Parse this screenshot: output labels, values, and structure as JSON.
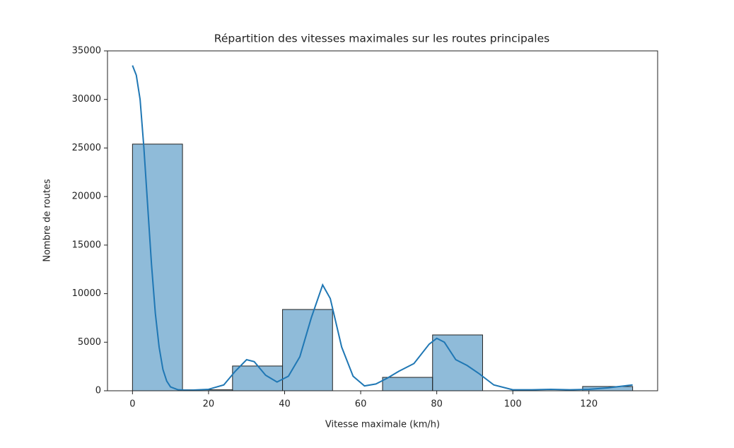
{
  "chart_data": {
    "type": "histogram",
    "title": "Répartition des vitesses maximales sur les routes principales",
    "xlabel": "Vitesse maximale (km/h)",
    "ylabel": "Nombre de routes",
    "bins": [
      0,
      13.15,
      26.3,
      39.45,
      52.6,
      65.75,
      78.9,
      92.05,
      105.2,
      118.35,
      131.5
    ],
    "values": [
      25400,
      100,
      2550,
      8370,
      0,
      1380,
      5750,
      0,
      0,
      440
    ],
    "color": "#1f77b4",
    "edgecolor": "#222222",
    "kde": {
      "color": "#1f77b4",
      "x": [
        0,
        1,
        2,
        3,
        4,
        5,
        6,
        7,
        8,
        9,
        10,
        12,
        15,
        20,
        24,
        27,
        30,
        32,
        35,
        38,
        41,
        44,
        47,
        50,
        52,
        55,
        58,
        61,
        64,
        67,
        70,
        74,
        78,
        80,
        82,
        85,
        88,
        91,
        95,
        100,
        105,
        110,
        115,
        120,
        125,
        131.5
      ],
      "values": [
        33500,
        32500,
        30000,
        25000,
        19000,
        13000,
        8000,
        4500,
        2200,
        1000,
        400,
        100,
        50,
        150,
        600,
        2000,
        3200,
        3000,
        1600,
        900,
        1500,
        3500,
        7500,
        10900,
        9500,
        4500,
        1500,
        500,
        700,
        1300,
        2000,
        2800,
        4800,
        5400,
        5000,
        3200,
        2600,
        1800,
        600,
        100,
        100,
        150,
        100,
        150,
        300,
        600
      ]
    },
    "xlim": [
      -6.575,
      138.075
    ],
    "ylim": [
      0,
      35000
    ],
    "xticks": [
      0,
      20,
      40,
      60,
      80,
      100,
      120
    ],
    "yticks": [
      0,
      5000,
      10000,
      15000,
      20000,
      25000,
      30000,
      35000
    ]
  }
}
